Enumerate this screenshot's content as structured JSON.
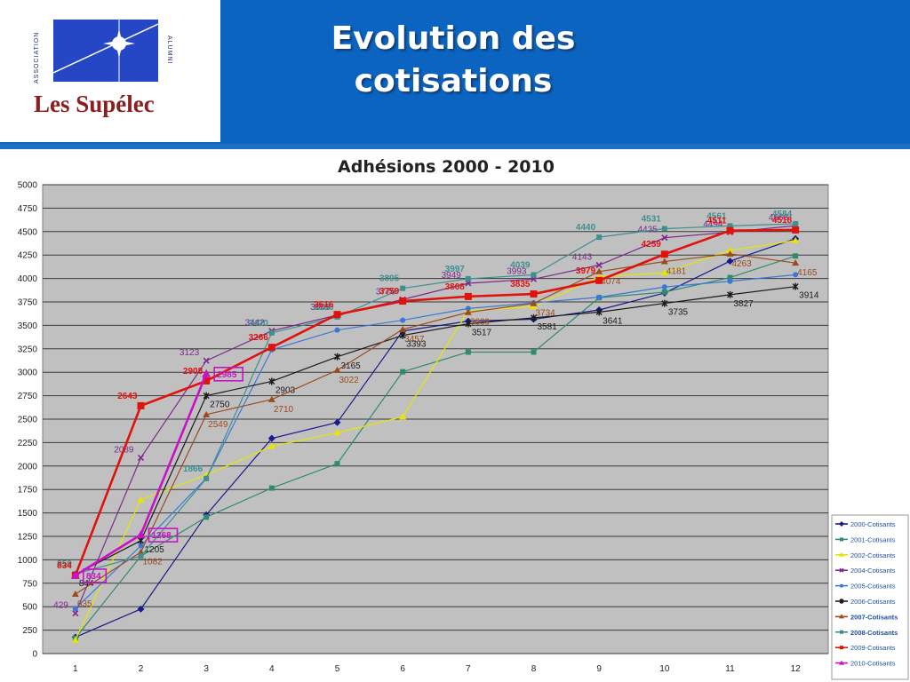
{
  "header": {
    "title_line1": "Evolution des",
    "title_line2": "cotisations",
    "logo": {
      "association": "ASSOCIATION",
      "alumni": "ALUMNI",
      "name": "Les Supélec"
    }
  },
  "colors": {
    "header_bg": "#0b64c0",
    "plot_bg": "#c0c0c0"
  },
  "chart_data": {
    "type": "line",
    "title": "Adhésions 2000 - 2010",
    "x": [
      1,
      2,
      3,
      4,
      5,
      6,
      7,
      8,
      9,
      10,
      11,
      12
    ],
    "xlim": [
      0.5,
      12.5
    ],
    "ylim": [
      0,
      5000
    ],
    "ytick_step": 250,
    "grid": true,
    "legend_position": "right",
    "series": [
      {
        "name": "2000-Cotisants",
        "color": "#1a1a8c",
        "marker": "diamond",
        "values": [
          175,
          475,
          1480,
          2295,
          2465,
          3440,
          3545,
          3565,
          3665,
          3845,
          4185,
          4425
        ],
        "labels": [
          null,
          null,
          null,
          null,
          null,
          null,
          null,
          null,
          null,
          null,
          null,
          null
        ]
      },
      {
        "name": "2001-Cotisants",
        "color": "#2e8b6d",
        "marker": "square",
        "values": [
          165,
          1040,
          1455,
          1765,
          2025,
          3005,
          3215,
          3215,
          3795,
          3855,
          4010,
          4240
        ],
        "labels": [
          null,
          null,
          null,
          null,
          null,
          null,
          null,
          null,
          null,
          null,
          null,
          null
        ]
      },
      {
        "name": "2002-Cotisants",
        "color": "#e6e600",
        "marker": "triangle",
        "values": [
          145,
          1640,
          1905,
          2210,
          2355,
          2525,
          3655,
          3700,
          4020,
          4060,
          4300,
          4405
        ],
        "labels": [
          null,
          null,
          null,
          null,
          null,
          null,
          null,
          null,
          null,
          null,
          null,
          null
        ]
      },
      {
        "name": "2004-Cotisants",
        "color": "#7b2a8c",
        "marker": "x",
        "values": [
          429,
          2089,
          3123,
          3442,
          3609,
          3776,
          3949,
          3993,
          4143,
          4435,
          4494,
          4563
        ],
        "labels": [
          "429",
          "2089",
          "3123",
          "3442",
          "3609",
          "3776",
          "3949",
          "3993",
          "4143",
          "4435",
          "4494",
          "4563"
        ]
      },
      {
        "name": "2005-Cotisants",
        "color": "#3a78d8",
        "marker": "circle",
        "values": [
          480,
          1150,
          1870,
          3240,
          3450,
          3555,
          3680,
          3740,
          3800,
          3910,
          3970,
          4040
        ],
        "labels": [
          null,
          null,
          null,
          null,
          null,
          null,
          null,
          null,
          null,
          null,
          null,
          null
        ]
      },
      {
        "name": "2006-Cotisants",
        "color": "#1a1a1a",
        "marker": "star",
        "values": [
          844,
          1205,
          2750,
          2903,
          3165,
          3393,
          3517,
          3581,
          3641,
          3735,
          3827,
          3914
        ],
        "labels": [
          "844",
          "1205",
          "2750",
          "2903",
          "3165",
          "3393",
          "3517",
          "3581",
          "3641",
          "3735",
          "3827",
          "3914"
        ]
      },
      {
        "name": "2007-Cotisants",
        "color": "#9c4a1e",
        "marker": "triangle",
        "values": [
          635,
          1082,
          2549,
          2710,
          3022,
          3457,
          3639,
          3734,
          4074,
          4181,
          4263,
          4165
        ],
        "labels": [
          "635",
          "1082",
          "2549",
          "2710",
          "3022",
          "3457",
          "3639",
          "3734",
          "4074",
          "4181",
          "4263",
          "4165"
        ]
      },
      {
        "name": "2008-Cotisants",
        "color": "#3f8f8f",
        "marker": "square",
        "values": [
          850,
          1040,
          1866,
          3420,
          3590,
          3895,
          3997,
          4039,
          4440,
          4531,
          4561,
          4584
        ],
        "labels": [
          "850",
          null,
          "1866",
          "3420",
          "3590",
          "3895",
          "3997",
          "4039",
          "4440",
          "4531",
          "4561",
          "4584"
        ]
      },
      {
        "name": "2009-Cotisants",
        "color": "#e0120c",
        "marker": "square",
        "values": [
          834,
          2643,
          2908,
          3266,
          3616,
          3759,
          3808,
          3835,
          3979,
          4259,
          4511,
          4518
        ],
        "labels": [
          "834",
          "2643",
          "2908",
          "3266",
          "3616",
          "3759",
          "3808",
          "3835",
          "3979",
          "4259",
          "4511",
          "4518"
        ]
      },
      {
        "name": "2010-Cotisants",
        "color": "#c812c8",
        "marker": "triangle",
        "values": [
          834,
          1268,
          2985,
          null,
          null,
          null,
          null,
          null,
          null,
          null,
          null,
          null
        ],
        "labels": [
          "834",
          "1268",
          "2985",
          null,
          null,
          null,
          null,
          null,
          null,
          null,
          null,
          null
        ]
      }
    ]
  }
}
